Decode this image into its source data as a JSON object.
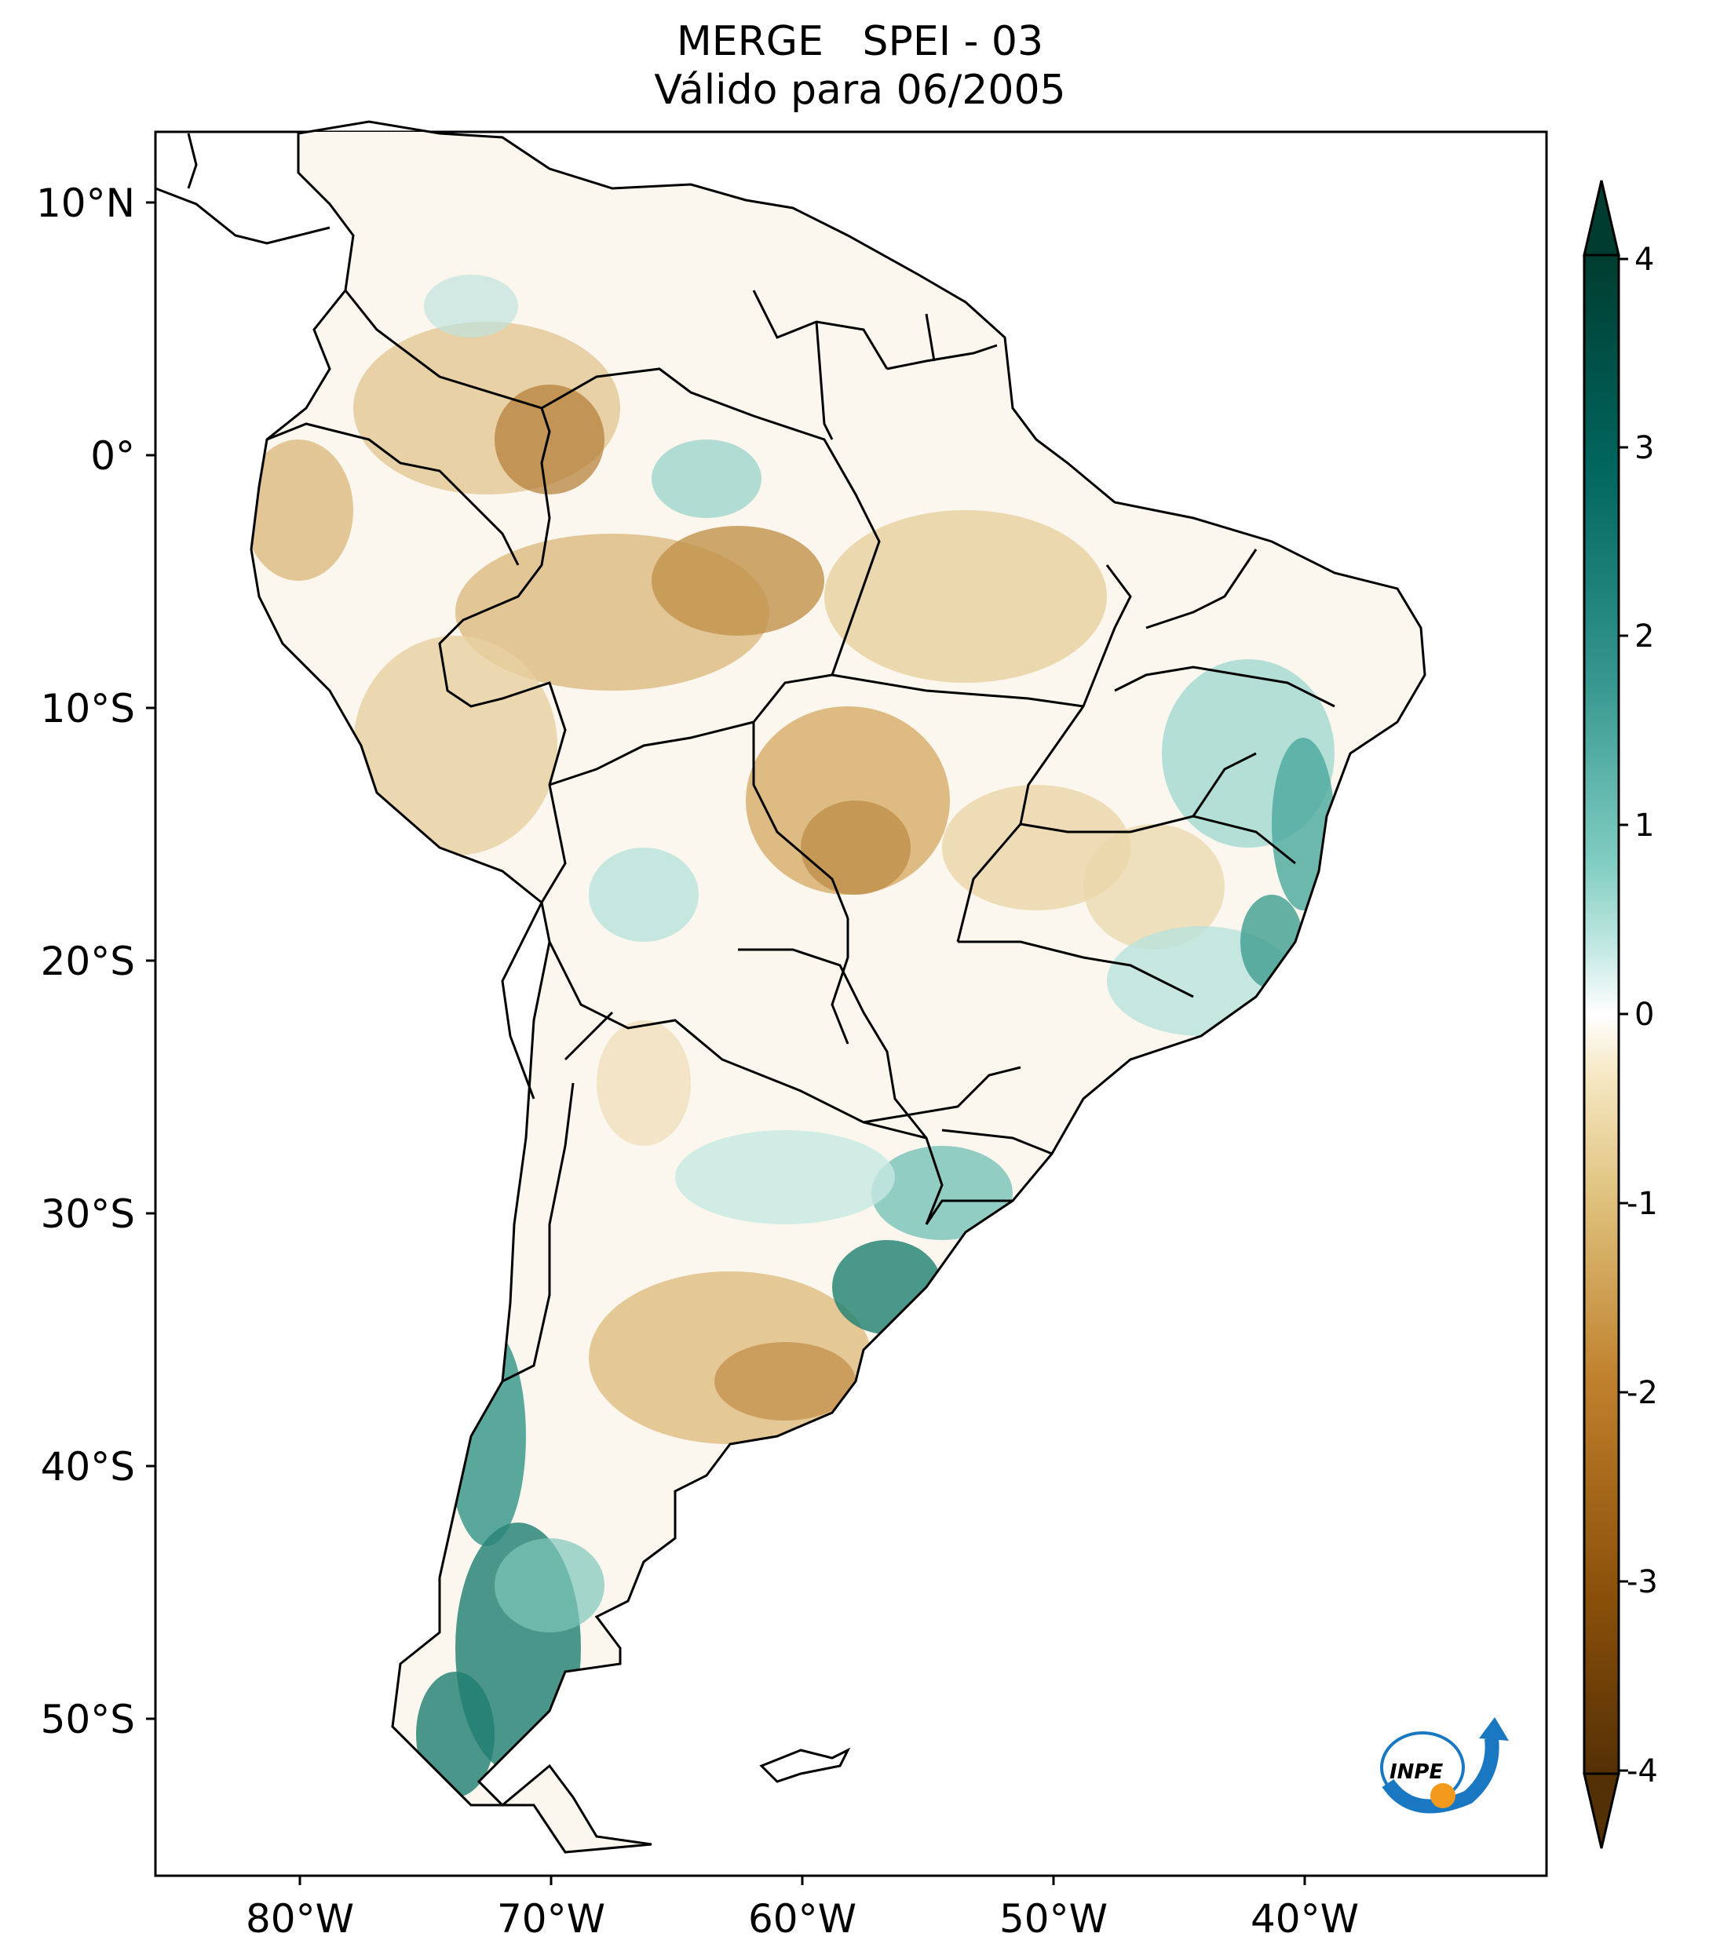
{
  "title": {
    "line1": "MERGE   SPEI - 03",
    "line2": "Válido para 06/2005"
  },
  "axes": {
    "lon_labels": [
      "80°W",
      "70°W",
      "60°W",
      "50°W",
      "40°W"
    ],
    "lat_labels": [
      "10°N",
      "0°",
      "10°S",
      "20°S",
      "30°S",
      "40°S",
      "50°S"
    ]
  },
  "colorbar": {
    "labels": [
      "4",
      "3",
      "2",
      "1",
      "0",
      "-1",
      "-2",
      "-3",
      "-4"
    ],
    "colors": {
      "min": "#543005",
      "dry_mid": "#bf812d",
      "dry_light": "#f6e8c3",
      "neutral": "#ffffff",
      "wet_light": "#c7eae5",
      "wet_mid": "#35978f",
      "max": "#003c30"
    }
  },
  "logo": {
    "text": "INPE"
  },
  "colors": {
    "dry": "#c89a55",
    "dry_strong": "#a86f26",
    "wet": "#4aa89c",
    "wet_strong": "#157a6c",
    "border": "#000000"
  }
}
